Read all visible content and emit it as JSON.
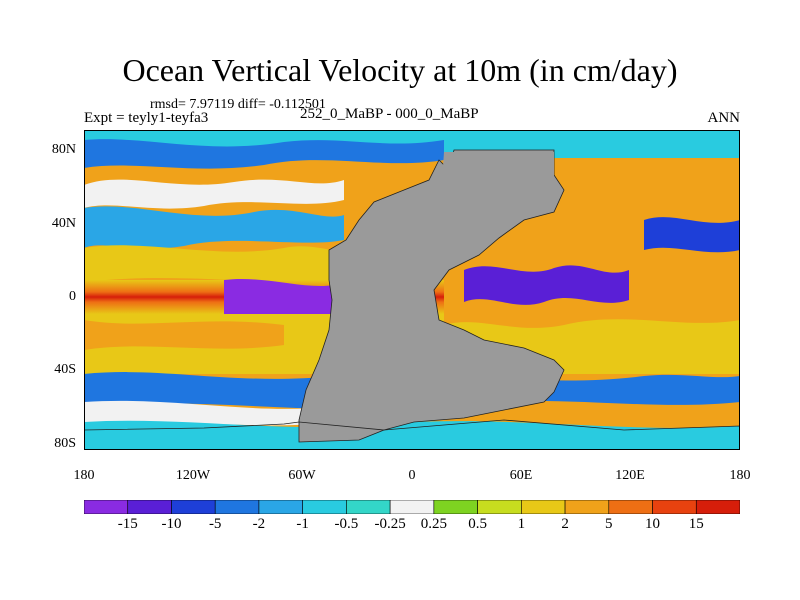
{
  "title": "Ocean Vertical Velocity at 10m (in cm/day)",
  "stats": "rmsd= 7.97119 diff= -0.112501",
  "experiment": "Expt = teyly1-teyfa3",
  "comparison": "252_0_MaBP - 000_0_MaBP",
  "season": "ANN",
  "lat_labels": [
    "80N",
    "40N",
    "0",
    "40S",
    "80S"
  ],
  "lon_labels": [
    "180",
    "120W",
    "60W",
    "0",
    "60E",
    "120E",
    "180"
  ],
  "colorbar": {
    "labels": [
      "-15",
      "-10",
      "-5",
      "-2",
      "-1",
      "-0.5",
      "-0.25",
      "0.25",
      "0.5",
      "1",
      "2",
      "5",
      "10",
      "15"
    ],
    "colors": [
      "#8a2be2",
      "#5a1fd6",
      "#1e3fd8",
      "#1f76e0",
      "#2aa6e6",
      "#29cbe0",
      "#33d6c8",
      "#f2f2f2",
      "#7ed321",
      "#c7dd1f",
      "#e8c817",
      "#f0a21a",
      "#ee6f14",
      "#e8420f",
      "#d61e0a"
    ]
  },
  "land_color": "#9a9a9a"
}
